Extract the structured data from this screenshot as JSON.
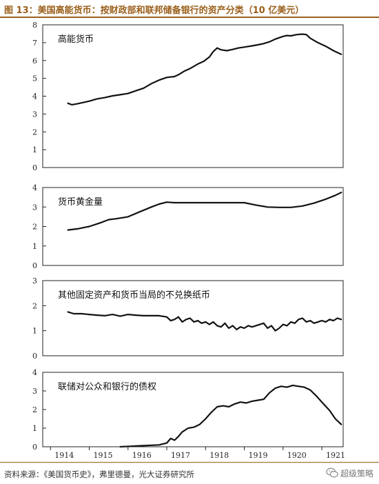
{
  "header": {
    "title": "图 13：美国高能货币：按财政部和联邦储备银行的资产分类（10 亿美元）"
  },
  "footer": {
    "source": "资料来源：《美国货币史》，弗里德曼，光大证券研究所",
    "watermark": "超级策略"
  },
  "chart_data": [
    {
      "type": "line",
      "title": "高能货币",
      "ylim": [
        0,
        8
      ],
      "yticks": [
        0,
        1,
        2,
        3,
        4,
        5,
        6,
        7,
        8
      ],
      "grid": false,
      "series": [
        {
          "x": [
            1914.45,
            1914.55,
            1914.7,
            1914.85,
            1915.0,
            1915.2,
            1915.4,
            1915.6,
            1915.8,
            1916.0,
            1916.2,
            1916.4,
            1916.6,
            1916.8,
            1917.0,
            1917.2,
            1917.3,
            1917.45,
            1917.6,
            1917.8,
            1917.95,
            1918.1,
            1918.2,
            1918.3,
            1918.4,
            1918.55,
            1918.7,
            1918.85,
            1919.0,
            1919.2,
            1919.35,
            1919.5,
            1919.65,
            1919.8,
            1920.0,
            1920.1,
            1920.2,
            1920.35,
            1920.5,
            1920.6,
            1920.7,
            1920.9,
            1921.1,
            1921.3,
            1921.5
          ],
          "values": [
            3.6,
            3.52,
            3.58,
            3.65,
            3.72,
            3.85,
            3.92,
            4.02,
            4.08,
            4.15,
            4.3,
            4.45,
            4.7,
            4.9,
            5.05,
            5.1,
            5.2,
            5.4,
            5.55,
            5.8,
            5.95,
            6.2,
            6.5,
            6.7,
            6.6,
            6.55,
            6.62,
            6.7,
            6.75,
            6.82,
            6.88,
            6.95,
            7.05,
            7.2,
            7.35,
            7.4,
            7.38,
            7.45,
            7.48,
            7.45,
            7.25,
            7.0,
            6.8,
            6.55,
            6.35
          ]
        }
      ]
    },
    {
      "type": "line",
      "title": "货币黄金量",
      "ylim": [
        0,
        4
      ],
      "yticks": [
        0,
        1,
        2,
        3,
        4
      ],
      "grid": false,
      "series": [
        {
          "x": [
            1914.45,
            1914.7,
            1915.0,
            1915.3,
            1915.5,
            1915.7,
            1916.0,
            1916.3,
            1916.6,
            1916.8,
            1917.0,
            1917.2,
            1917.5,
            1918.0,
            1918.5,
            1919.0,
            1919.3,
            1919.6,
            1919.9,
            1920.2,
            1920.5,
            1920.8,
            1921.1,
            1921.35,
            1921.5
          ],
          "values": [
            1.82,
            1.88,
            2.0,
            2.2,
            2.35,
            2.4,
            2.5,
            2.75,
            3.0,
            3.15,
            3.25,
            3.22,
            3.22,
            3.22,
            3.22,
            3.22,
            3.1,
            3.0,
            2.98,
            2.98,
            3.05,
            3.2,
            3.4,
            3.6,
            3.75
          ]
        }
      ]
    },
    {
      "type": "line",
      "title": "其他固定资产和货币当局的不兑换纸币",
      "ylim": [
        0,
        3
      ],
      "yticks": [
        0,
        1,
        2,
        3
      ],
      "grid": false,
      "series": [
        {
          "x": [
            1914.45,
            1914.6,
            1914.8,
            1915.0,
            1915.2,
            1915.4,
            1915.6,
            1915.8,
            1916.0,
            1916.2,
            1916.4,
            1916.6,
            1916.8,
            1917.0,
            1917.1,
            1917.2,
            1917.3,
            1917.4,
            1917.5,
            1917.6,
            1917.7,
            1917.8,
            1917.9,
            1918.0,
            1918.1,
            1918.2,
            1918.3,
            1918.4,
            1918.5,
            1918.6,
            1918.7,
            1918.8,
            1918.9,
            1919.0,
            1919.1,
            1919.2,
            1919.3,
            1919.4,
            1919.5,
            1919.6,
            1919.7,
            1919.8,
            1919.9,
            1920.0,
            1920.1,
            1920.2,
            1920.3,
            1920.4,
            1920.5,
            1920.6,
            1920.7,
            1920.8,
            1920.9,
            1921.0,
            1921.1,
            1921.2,
            1921.3,
            1921.4,
            1921.5
          ],
          "values": [
            1.75,
            1.68,
            1.68,
            1.65,
            1.62,
            1.6,
            1.65,
            1.58,
            1.65,
            1.62,
            1.6,
            1.6,
            1.6,
            1.55,
            1.4,
            1.45,
            1.55,
            1.35,
            1.45,
            1.5,
            1.35,
            1.4,
            1.3,
            1.35,
            1.25,
            1.35,
            1.2,
            1.15,
            1.3,
            1.1,
            1.2,
            1.05,
            1.15,
            1.1,
            1.2,
            1.15,
            1.2,
            1.25,
            1.3,
            1.1,
            1.2,
            1.0,
            1.1,
            1.25,
            1.2,
            1.35,
            1.3,
            1.45,
            1.5,
            1.35,
            1.4,
            1.3,
            1.35,
            1.4,
            1.35,
            1.45,
            1.4,
            1.5,
            1.45
          ]
        }
      ]
    },
    {
      "type": "line",
      "title": "联储对公众和银行的债权",
      "ylim": [
        0,
        4
      ],
      "yticks": [
        0,
        1,
        2,
        3,
        4
      ],
      "xlim": [
        1913.8,
        1921.55
      ],
      "xticks": [
        1914,
        1915,
        1916,
        1917,
        1918,
        1919,
        1920,
        1921
      ],
      "grid": false,
      "series": [
        {
          "x": [
            1915.8,
            1916.0,
            1916.3,
            1916.6,
            1916.8,
            1917.0,
            1917.1,
            1917.2,
            1917.3,
            1917.4,
            1917.55,
            1917.7,
            1917.85,
            1918.0,
            1918.15,
            1918.3,
            1918.45,
            1918.6,
            1918.75,
            1918.9,
            1919.05,
            1919.2,
            1919.35,
            1919.5,
            1919.65,
            1919.8,
            1919.95,
            1920.1,
            1920.25,
            1920.4,
            1920.55,
            1920.7,
            1920.85,
            1921.0,
            1921.2,
            1921.35,
            1921.5
          ],
          "values": [
            0.0,
            0.02,
            0.05,
            0.08,
            0.1,
            0.2,
            0.45,
            0.35,
            0.55,
            0.8,
            1.0,
            1.05,
            1.2,
            1.5,
            1.85,
            2.15,
            2.2,
            2.15,
            2.3,
            2.4,
            2.35,
            2.45,
            2.5,
            2.55,
            2.9,
            3.15,
            3.25,
            3.2,
            3.3,
            3.25,
            3.2,
            3.05,
            2.75,
            2.4,
            1.95,
            1.5,
            1.2
          ]
        }
      ]
    }
  ],
  "style": {
    "line_color": "#111111",
    "title_color": "#9a5f1a",
    "rule_color": "#9a5f1a"
  }
}
